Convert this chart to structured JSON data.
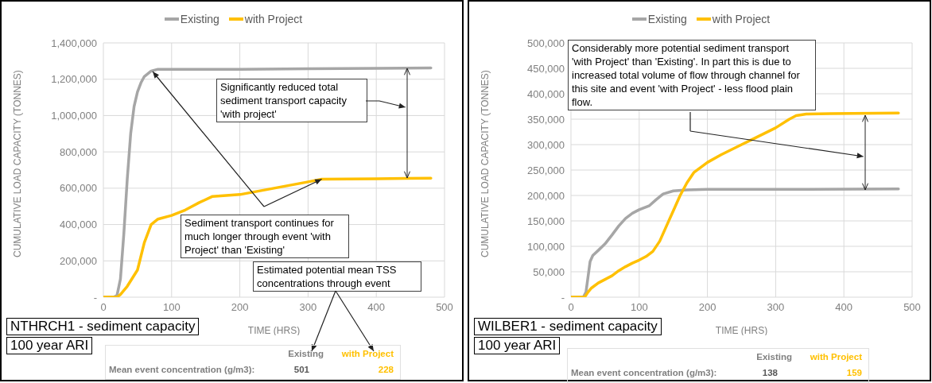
{
  "chart_data": [
    {
      "type": "line",
      "title": "NTHRCH1 - sediment capacity",
      "subtitle": "100 year ARI",
      "xlabel": "TIME (HRS)",
      "ylabel": "CUMULATIVE LOAD CAPACITY (TONNES)",
      "legend": "top",
      "grid": true,
      "marker": "none",
      "line_style": "solid",
      "xlim": [
        0,
        500
      ],
      "xticks": [
        0,
        100,
        200,
        300,
        400,
        500
      ],
      "ylim": [
        0,
        1400000
      ],
      "yticks": [
        {
          "value": 0,
          "label": "-"
        },
        {
          "value": 200000,
          "label": "200,000"
        },
        {
          "value": 400000,
          "label": "400,000"
        },
        {
          "value": 600000,
          "label": "600,000"
        },
        {
          "value": 800000,
          "label": "800,000"
        },
        {
          "value": 1000000,
          "label": "1,000,000"
        },
        {
          "value": 1200000,
          "label": "1,200,000"
        },
        {
          "value": 1400000,
          "label": "1,400,000"
        }
      ],
      "series": [
        {
          "name": "Existing",
          "color": "#a6a6a6",
          "x": [
            0,
            15,
            20,
            25,
            30,
            35,
            40,
            45,
            50,
            55,
            60,
            70,
            80,
            100,
            200,
            300,
            400,
            480
          ],
          "values": [
            0,
            0,
            10000,
            100000,
            350000,
            650000,
            900000,
            1050000,
            1130000,
            1180000,
            1215000,
            1245000,
            1255000,
            1255000,
            1255000,
            1258000,
            1260000,
            1262000
          ]
        },
        {
          "name": "with Project",
          "color": "#ffc000",
          "x": [
            0,
            20,
            25,
            35,
            50,
            60,
            70,
            80,
            100,
            120,
            140,
            160,
            200,
            250,
            300,
            320,
            400,
            480
          ],
          "values": [
            0,
            0,
            15000,
            60000,
            150000,
            300000,
            400000,
            430000,
            450000,
            480000,
            520000,
            555000,
            565000,
            600000,
            635000,
            650000,
            652000,
            655000
          ]
        }
      ],
      "annotations": [
        "Significantly reduced total sediment transport capacity 'with project'",
        {
          "text": "Sediment transport continues for much longer through event 'with Project' than 'Existing'",
          "x": 320,
          "y": 650000
        },
        "Estimated potential mean TSS concentrations through event",
        "Existing",
        "with Project",
        "Mean event concentration (g/m3):",
        "501",
        "228"
      ]
    },
    {
      "type": "line",
      "title": "WILBER1 - sediment capacity",
      "subtitle": "100 year ARI",
      "xlabel": "TIME (HRS)",
      "ylabel": "CUMULATIVE LOAD CAPACITY (TONNES)",
      "legend": "top",
      "grid": true,
      "marker": "none",
      "line_style": "solid",
      "xlim": [
        0,
        500
      ],
      "xticks": [
        0,
        100,
        200,
        300,
        400,
        500
      ],
      "ylim": [
        0,
        500000
      ],
      "yticks": [
        {
          "value": 0,
          "label": "-"
        },
        {
          "value": 50000,
          "label": "50,000"
        },
        {
          "value": 100000,
          "label": "100,000"
        },
        {
          "value": 150000,
          "label": "150,000"
        },
        {
          "value": 200000,
          "label": "200,000"
        },
        {
          "value": 250000,
          "label": "250,000"
        },
        {
          "value": 300000,
          "label": "300,000"
        },
        {
          "value": 350000,
          "label": "350,000"
        },
        {
          "value": 400000,
          "label": "400,000"
        },
        {
          "value": 450000,
          "label": "450,000"
        },
        {
          "value": 500000,
          "label": "500,000"
        }
      ],
      "series": [
        {
          "name": "Existing",
          "color": "#a6a6a6",
          "x": [
            0,
            18,
            22,
            25,
            28,
            32,
            40,
            50,
            60,
            70,
            80,
            90,
            100,
            115,
            125,
            135,
            150,
            170,
            200,
            300,
            480
          ],
          "values": [
            0,
            0,
            10000,
            40000,
            70000,
            82000,
            92000,
            105000,
            122000,
            140000,
            155000,
            165000,
            172000,
            180000,
            192000,
            203000,
            209000,
            211000,
            212000,
            212000,
            213000
          ]
        },
        {
          "name": "with Project",
          "color": "#ffc000",
          "x": [
            0,
            20,
            25,
            30,
            40,
            50,
            60,
            70,
            80,
            90,
            100,
            110,
            120,
            130,
            140,
            150,
            160,
            170,
            180,
            200,
            220,
            250,
            270,
            300,
            320,
            330,
            345,
            380,
            480
          ],
          "values": [
            0,
            0,
            10000,
            18000,
            28000,
            35000,
            42000,
            52000,
            60000,
            67000,
            73000,
            80000,
            90000,
            110000,
            140000,
            170000,
            200000,
            225000,
            245000,
            265000,
            280000,
            300000,
            313000,
            333000,
            350000,
            357000,
            360000,
            361000,
            362000
          ]
        }
      ],
      "annotations": [
        "Considerably more potential sediment transport 'with Project' than 'Existing'. In part this is due to increased total volume of flow through channel for this site and event 'with Project' - less flood plain flow.",
        "Existing",
        "with Project",
        "Mean event concentration (g/m3):",
        "138",
        "159"
      ]
    }
  ]
}
